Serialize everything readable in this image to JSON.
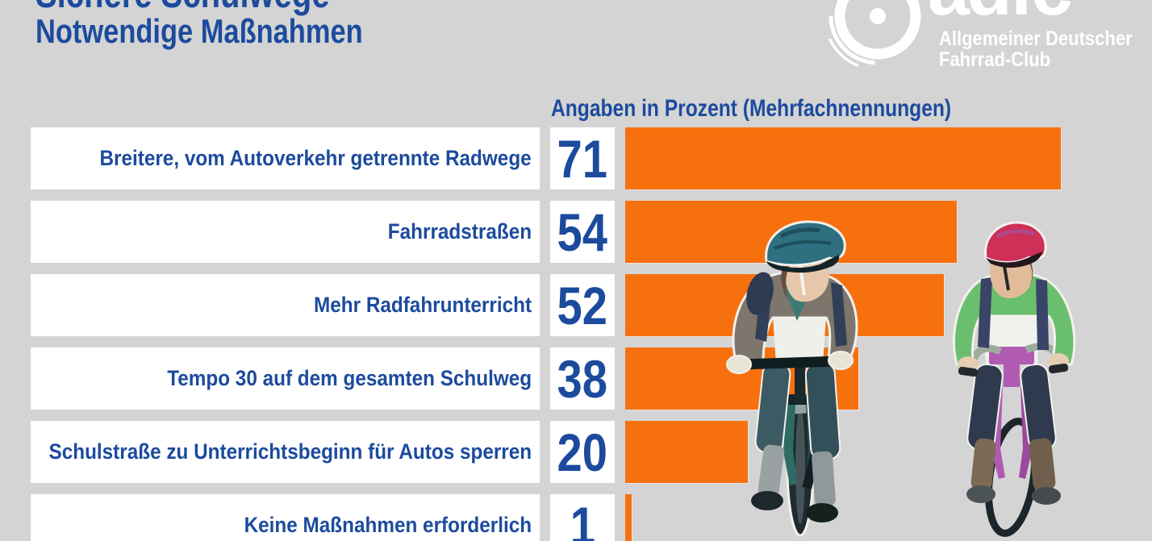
{
  "header": {
    "title": "Sichere Schulwege",
    "subtitle": "Notwendige Maßnahmen"
  },
  "logo": {
    "brand": "adfc",
    "org_line1": "Allgemeiner Deutscher",
    "org_line2": "Fahrrad-Club"
  },
  "chart_data": {
    "type": "bar",
    "orientation": "horizontal",
    "title": "Angaben in Prozent (Mehrfachnennungen)",
    "categories": [
      "Breitere, vom Autoverkehr getrennte Radwege",
      "Fahrradstraßen",
      "Mehr Radfahrunterricht",
      "Tempo 30 auf dem gesamten Schulweg",
      "Schulstraße zu Unterrichtsbeginn für Autos sperren",
      "Keine Maßnahmen erforderlich"
    ],
    "values": [
      71,
      54,
      52,
      38,
      20,
      1
    ],
    "unit": "percent",
    "xlim": [
      0,
      71
    ],
    "grid": false,
    "legend": "none",
    "value_labels": "in white boxes left of bars",
    "bar_color": "#F7700E",
    "label_color": "#1C4B9E",
    "background": "#D4D4D4"
  },
  "illustration": {
    "description": "two children riding bicycles toward viewer, watercolor style",
    "left_child": {
      "helmet": "teal",
      "sweater": "grey",
      "bike": "dark teal"
    },
    "right_child": {
      "helmet": "pink-red",
      "sweater": "green",
      "bike": "purple"
    }
  }
}
